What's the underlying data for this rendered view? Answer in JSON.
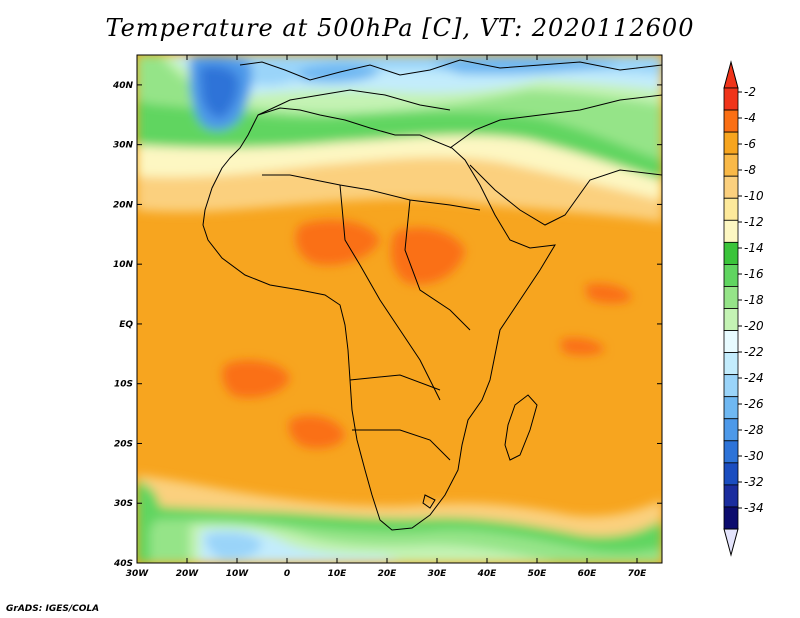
{
  "title": "Temperature at 500hPa [C], VT: 2020112600",
  "credit": "GrADS: IGES/COLA",
  "map": {
    "lon_range": [
      -30,
      75
    ],
    "lat_range": [
      -40,
      45
    ],
    "lon_ticks": [
      {
        "value": -30,
        "label": "30W"
      },
      {
        "value": -20,
        "label": "20W"
      },
      {
        "value": -10,
        "label": "10W"
      },
      {
        "value": 0,
        "label": "0"
      },
      {
        "value": 10,
        "label": "10E"
      },
      {
        "value": 20,
        "label": "20E"
      },
      {
        "value": 30,
        "label": "30E"
      },
      {
        "value": 40,
        "label": "40E"
      },
      {
        "value": 50,
        "label": "50E"
      },
      {
        "value": 60,
        "label": "60E"
      },
      {
        "value": 70,
        "label": "70E"
      }
    ],
    "lat_ticks": [
      {
        "value": 40,
        "label": "40N"
      },
      {
        "value": 30,
        "label": "30N"
      },
      {
        "value": 20,
        "label": "20N"
      },
      {
        "value": 10,
        "label": "10N"
      },
      {
        "value": 0,
        "label": "EQ"
      },
      {
        "value": -10,
        "label": "10S"
      },
      {
        "value": -20,
        "label": "20S"
      },
      {
        "value": -30,
        "label": "30S"
      },
      {
        "value": -40,
        "label": "40S"
      }
    ]
  },
  "colorbar": {
    "levels": [
      "-2",
      "-4",
      "-6",
      "-8",
      "-10",
      "-12",
      "-14",
      "-16",
      "-18",
      "-20",
      "-22",
      "-24",
      "-26",
      "-28",
      "-30",
      "-32",
      "-34"
    ],
    "colors": [
      "#f0341a",
      "#fa6f14",
      "#f7a51f",
      "#f9b948",
      "#fbd07e",
      "#fde99b",
      "#fdf7c2",
      "#3ac43a",
      "#60d560",
      "#95e488",
      "#c4f3b4",
      "#e8fbff",
      "#c3ecfc",
      "#9ad4f9",
      "#6fb8f2",
      "#4d99e9",
      "#2d73d8",
      "#1a4dc0",
      "#1b2d9e",
      "#0c0c6e"
    ],
    "top_arrow_color": "#f0341a",
    "bottom_arrow_color": "#e4e4fc"
  }
}
